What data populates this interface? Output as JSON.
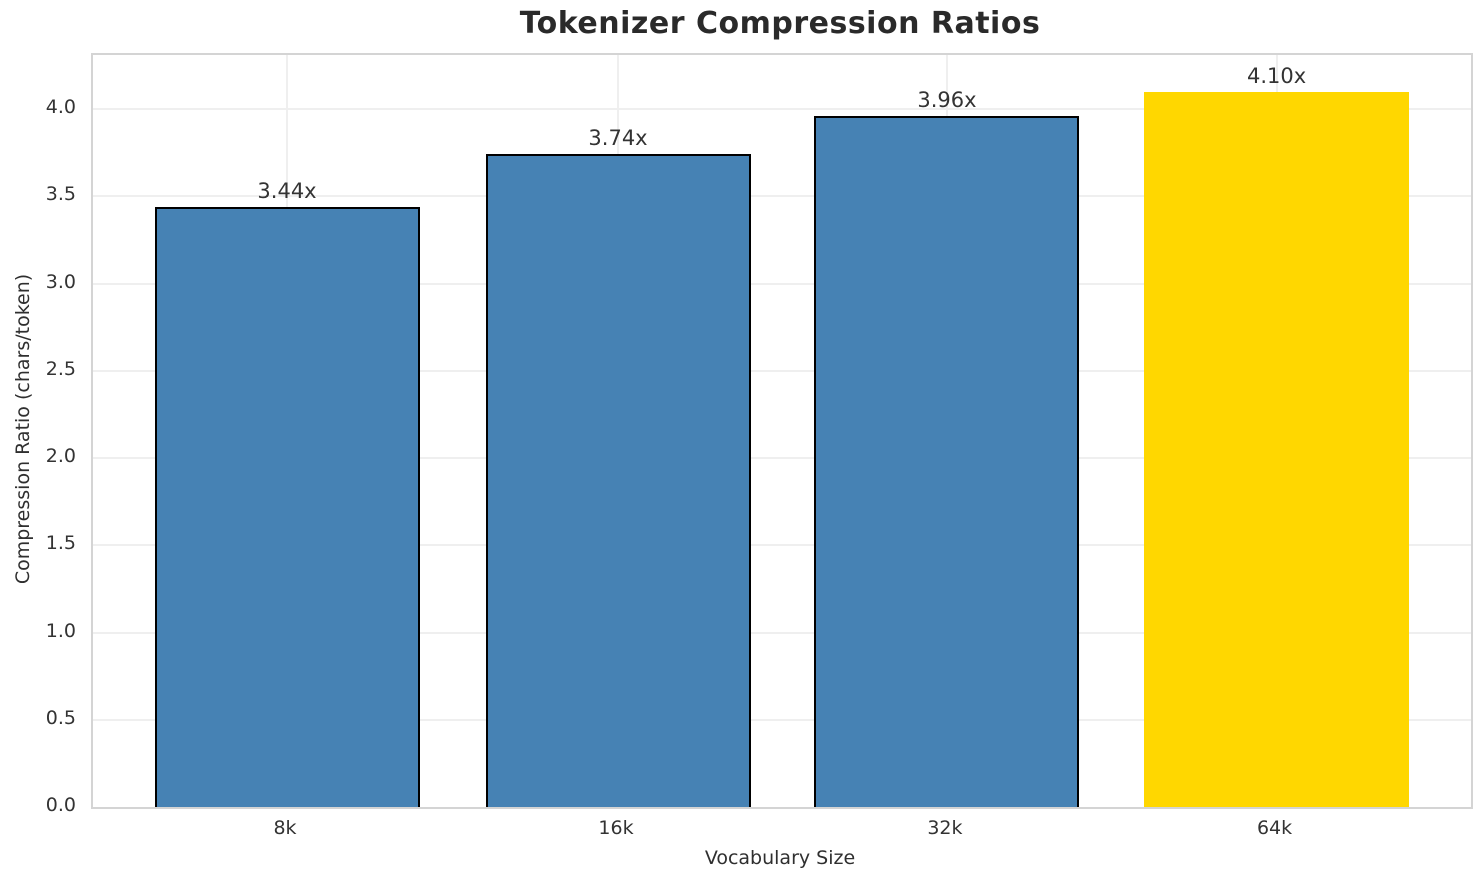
{
  "chart_data": {
    "type": "bar",
    "title": "Tokenizer Compression Ratios",
    "xlabel": "Vocabulary Size",
    "ylabel": "Compression Ratio (chars/token)",
    "categories": [
      "8k",
      "16k",
      "32k",
      "64k"
    ],
    "values": [
      3.44,
      3.74,
      3.96,
      4.1
    ],
    "bar_labels": [
      "3.44x",
      "3.74x",
      "3.96x",
      "4.10x"
    ],
    "bar_colors": [
      "#4682b4",
      "#4682b4",
      "#4682b4",
      "#ffd700"
    ],
    "bar_edge_colors": [
      "#000000",
      "#000000",
      "#000000",
      "none"
    ],
    "yticks": [
      0.0,
      0.5,
      1.0,
      1.5,
      2.0,
      2.5,
      3.0,
      3.5,
      4.0
    ],
    "ytick_labels": [
      "0.0",
      "0.5",
      "1.0",
      "1.5",
      "2.0",
      "2.5",
      "3.0",
      "3.5",
      "4.0"
    ],
    "ylim": [
      0,
      4.31
    ],
    "grid": true,
    "legend": "none",
    "colors": {
      "default_bar": "#4682b4",
      "highlight_bar": "#ffd700",
      "bar_edge": "#000000",
      "gridline": "#efefef",
      "spine": "#d4d4d4",
      "title_text": "#2a2a2a",
      "tick_text": "#333333"
    }
  }
}
